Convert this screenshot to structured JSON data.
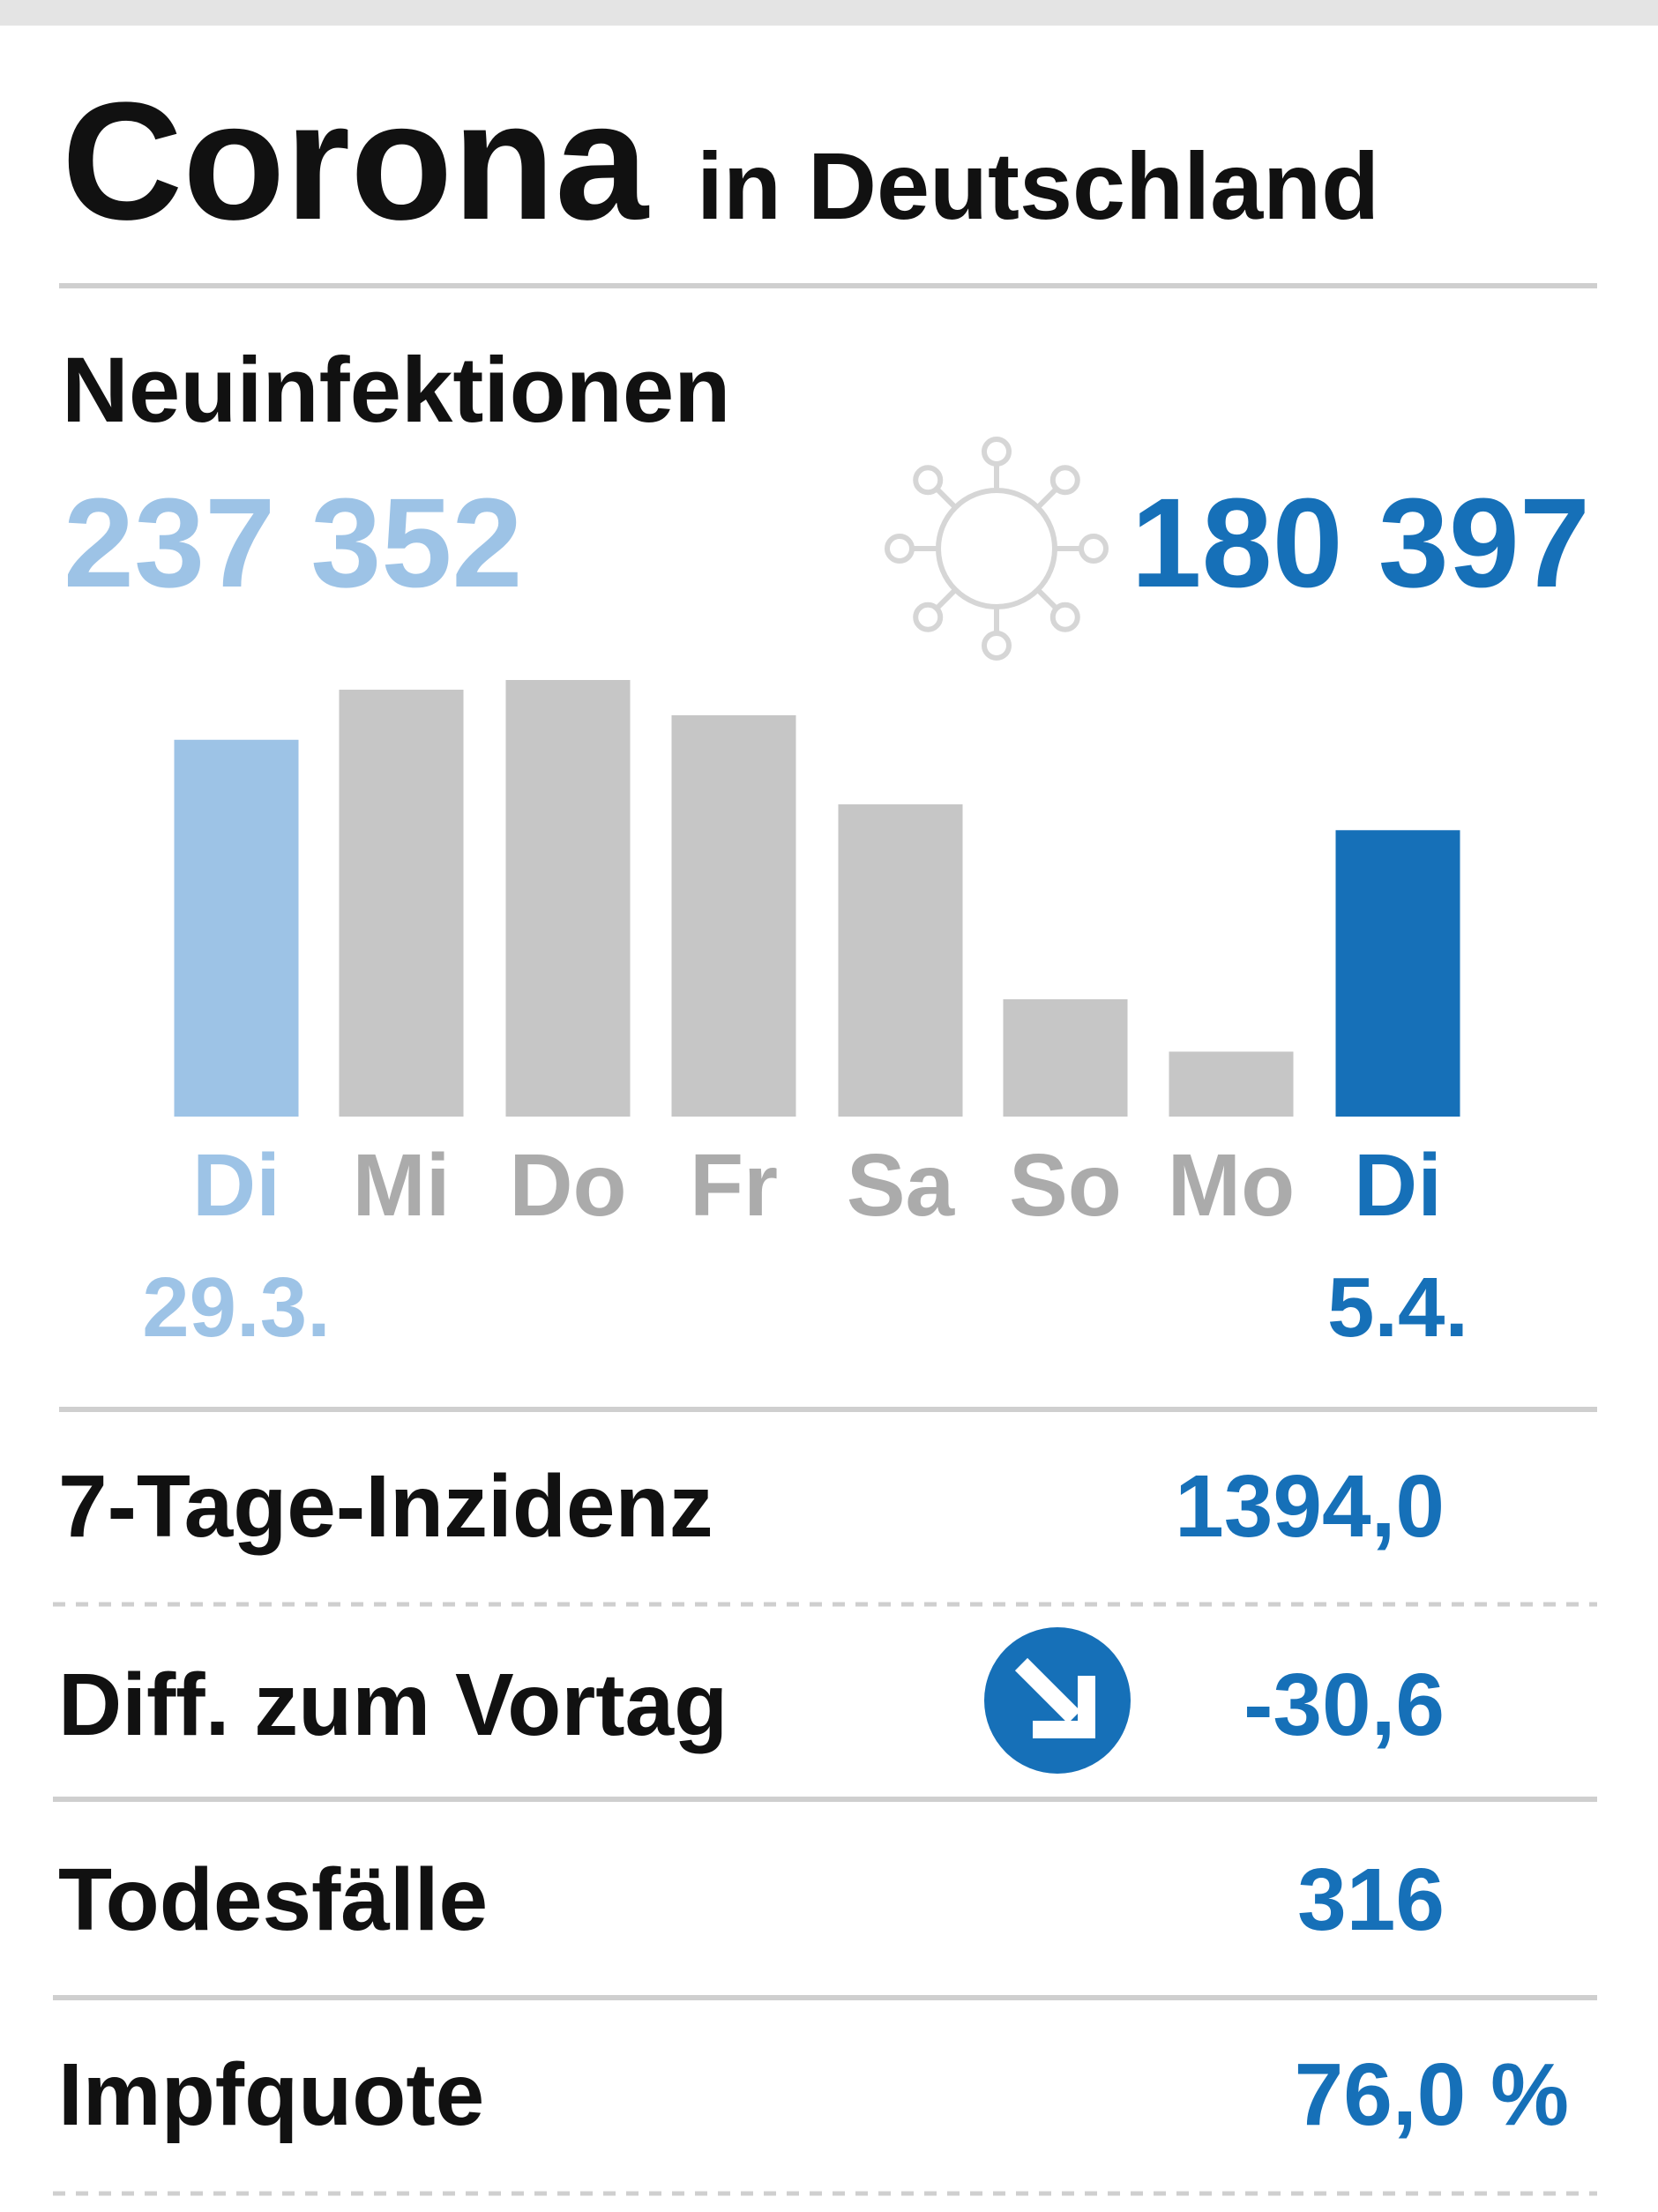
{
  "header": {
    "title": "Corona",
    "subtitle": "in Deutschland"
  },
  "chart_data": {
    "type": "bar",
    "title": "Neuinfektionen",
    "categories": [
      "Di",
      "Mi",
      "Do",
      "Fr",
      "Sa",
      "So",
      "Mo",
      "Di"
    ],
    "date_labels": [
      "29.3.",
      null,
      null,
      null,
      null,
      null,
      null,
      "5.4."
    ],
    "values": [
      237352,
      268900,
      275000,
      252800,
      196700,
      73900,
      40900,
      180397
    ],
    "value_labels": [
      "237 352",
      null,
      null,
      null,
      null,
      null,
      null,
      "180 397"
    ],
    "colors": [
      "#9dc3e6",
      "#c6c6c6",
      "#c6c6c6",
      "#c6c6c6",
      "#c6c6c6",
      "#c6c6c6",
      "#c6c6c6",
      "#1670b8"
    ],
    "ylim": [
      0,
      300000
    ]
  },
  "stats": {
    "rows": [
      [
        "7-Tage-Inzidenz",
        "1394,0"
      ],
      [
        "Diff. zum Vortag",
        "-30,6"
      ],
      [
        "Todesfälle",
        "316"
      ],
      [
        "Impfquote",
        "76,0 %"
      ]
    ]
  }
}
